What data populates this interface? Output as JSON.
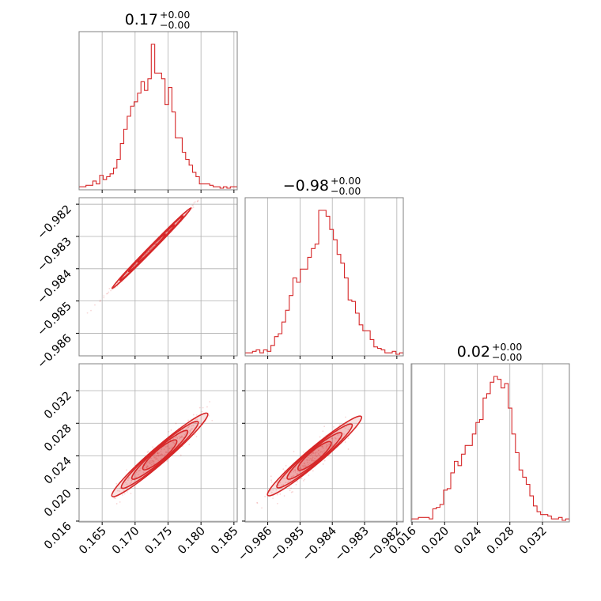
{
  "colors": {
    "series": "#d62728",
    "grid": "#b0b0b0",
    "frame": "#808080"
  },
  "chart_data": {
    "type": "corner",
    "parameters": [
      {
        "id": "p0",
        "title_value": "0.17",
        "title_plus": "+0.00",
        "title_minus": "−0.00",
        "range": [
          0.1615,
          0.1855
        ],
        "ticks": [
          0.165,
          0.17,
          0.175,
          0.18,
          0.185
        ],
        "tick_labels": [
          "0.165",
          "0.170",
          "0.175",
          "0.180",
          "0.185"
        ]
      },
      {
        "id": "p1",
        "title_value": "−0.98",
        "title_plus": "+0.00",
        "title_minus": "−0.00",
        "range": [
          -0.9867,
          -0.9818
        ],
        "ticks": [
          -0.986,
          -0.985,
          -0.984,
          -0.983,
          -0.982
        ],
        "tick_labels": [
          "−0.986",
          "−0.985",
          "−0.984",
          "−0.983",
          "−0.982"
        ]
      },
      {
        "id": "p2",
        "title_value": "0.02",
        "title_plus": "+0.00",
        "title_minus": "−0.00",
        "range": [
          0.0159,
          0.0353
        ],
        "ticks": [
          0.016,
          0.02,
          0.024,
          0.028,
          0.032
        ],
        "tick_labels": [
          "0.016",
          "0.020",
          "0.024",
          "0.028",
          "0.032"
        ]
      }
    ],
    "histograms": [
      {
        "param": "p0",
        "bin_edges": [
          0.1615,
          0.1855
        ],
        "counts": [
          1,
          1,
          2,
          2,
          5,
          3,
          9,
          6,
          8,
          10,
          14,
          20,
          31,
          41,
          50,
          57,
          60,
          66,
          74,
          68,
          76,
          100,
          80,
          80,
          76,
          58,
          70,
          53,
          35,
          35,
          25,
          20,
          16,
          11,
          8,
          3,
          3,
          3,
          2,
          1,
          1,
          0,
          1,
          0,
          1,
          1
        ]
      },
      {
        "param": "p1",
        "bin_edges": [
          -0.9867,
          -0.9818
        ],
        "counts": [
          1,
          1,
          2,
          3,
          1,
          3,
          2,
          6,
          12,
          14,
          22,
          30,
          40,
          52,
          49,
          58,
          58,
          66,
          72,
          75,
          98,
          98,
          94,
          85,
          78,
          68,
          62,
          52,
          37,
          36,
          28,
          20,
          16,
          16,
          10,
          5,
          4,
          3,
          1,
          1,
          2,
          0,
          1
        ]
      },
      {
        "param": "p2",
        "bin_edges": [
          0.0159,
          0.0353
        ],
        "counts": [
          1,
          1,
          2,
          2,
          2,
          1,
          8,
          9,
          11,
          21,
          22,
          33,
          41,
          38,
          46,
          52,
          52,
          60,
          68,
          70,
          85,
          88,
          96,
          100,
          98,
          92,
          95,
          78,
          60,
          47,
          35,
          30,
          25,
          17,
          10,
          6,
          4,
          4,
          3,
          1,
          1,
          2,
          0,
          1
        ]
      }
    ],
    "scatter_2d": [
      {
        "x": "p0",
        "y": "p1",
        "linear_slope": 0.20833,
        "linear_intercept": -1.0193,
        "x_span": [
          0.162,
          0.184
        ],
        "spread_y": 4e-05,
        "core_x": [
          0.1665,
          0.1785
        ]
      },
      {
        "x": "p0",
        "y": "p2",
        "linear_slope": 0.7,
        "linear_intercept": -0.0975,
        "x_span": [
          0.1625,
          0.184
        ],
        "spread_y": 0.0008,
        "core_x": [
          0.1665,
          0.181
        ]
      },
      {
        "x": "p1",
        "y": "p2",
        "linear_slope": 3.333,
        "linear_intercept": 3.3055,
        "x_span": [
          -0.9866,
          -0.9829
        ],
        "spread_y": 0.0008,
        "core_x": [
          -0.986,
          -0.9831
        ]
      }
    ],
    "xlabel": "",
    "ylabel": "",
    "grid": true,
    "legend": "none"
  }
}
